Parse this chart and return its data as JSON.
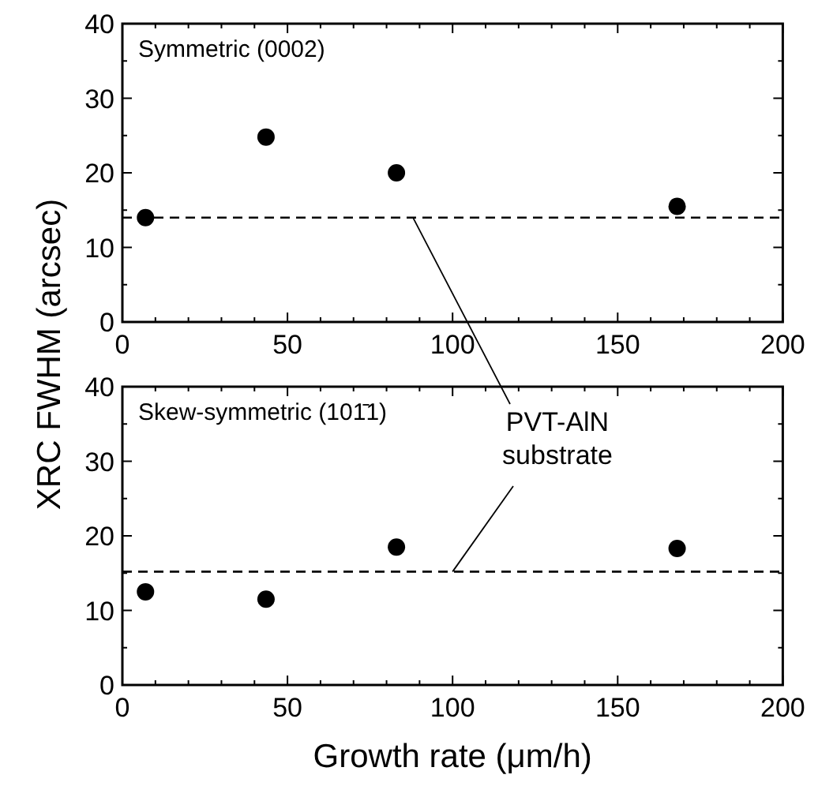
{
  "chart_data": [
    {
      "type": "scatter",
      "title": "Symmetric (0002)",
      "ylabel": "XRC FWHM (arcsec)",
      "x": [
        7,
        43.5,
        83,
        168
      ],
      "values": [
        14,
        24.8,
        20,
        15.5
      ],
      "color": "#000000",
      "marker": "circle",
      "xlim": [
        0,
        200
      ],
      "ylim": [
        0,
        40
      ],
      "xticks": [
        0,
        {
          "value": 10,
          "label": null
        },
        {
          "value": 20,
          "label": null
        },
        {
          "value": 30,
          "label": null
        },
        {
          "value": 40,
          "label": null
        },
        50,
        {
          "value": 60,
          "label": null
        },
        {
          "value": 70,
          "label": null
        },
        {
          "value": 80,
          "label": null
        },
        {
          "value": 90,
          "label": null
        },
        100,
        {
          "value": 110,
          "label": null
        },
        {
          "value": 120,
          "label": null
        },
        {
          "value": 130,
          "label": null
        },
        {
          "value": 140,
          "label": null
        },
        150,
        {
          "value": 160,
          "label": null
        },
        {
          "value": 170,
          "label": null
        },
        {
          "value": 180,
          "label": null
        },
        {
          "value": 190,
          "label": null
        },
        200
      ],
      "yticks": [
        0,
        {
          "value": 5,
          "label": null
        },
        10,
        {
          "value": 15,
          "label": null
        },
        20,
        {
          "value": 25,
          "label": null
        },
        30,
        {
          "value": 35,
          "label": null
        },
        40
      ],
      "ref_lines": [
        {
          "axis": "y",
          "value": 14,
          "line_style": "dashed",
          "color": "#000000"
        }
      ],
      "grid": false
    },
    {
      "type": "scatter",
      "title": "Skew-symmetric (101̄1)",
      "xlabel": "Growth rate (μm/h)",
      "annotations": [
        {
          "text": "PVT-AlN\nsubstrate",
          "x": 100,
          "y": 15.2
        }
      ],
      "x": [
        7,
        43.5,
        83,
        168
      ],
      "values": [
        12.5,
        11.5,
        18.5,
        18.3
      ],
      "color": "#000000",
      "marker": "circle",
      "xlim": [
        0,
        200
      ],
      "ylim": [
        0,
        40
      ],
      "xticks": [
        0,
        {
          "value": 10,
          "label": null
        },
        {
          "value": 20,
          "label": null
        },
        {
          "value": 30,
          "label": null
        },
        {
          "value": 40,
          "label": null
        },
        50,
        {
          "value": 60,
          "label": null
        },
        {
          "value": 70,
          "label": null
        },
        {
          "value": 80,
          "label": null
        },
        {
          "value": 90,
          "label": null
        },
        100,
        {
          "value": 110,
          "label": null
        },
        {
          "value": 120,
          "label": null
        },
        {
          "value": 130,
          "label": null
        },
        {
          "value": 140,
          "label": null
        },
        150,
        {
          "value": 160,
          "label": null
        },
        {
          "value": 170,
          "label": null
        },
        {
          "value": 180,
          "label": null
        },
        {
          "value": 190,
          "label": null
        },
        200
      ],
      "yticks": [
        0,
        {
          "value": 5,
          "label": null
        },
        10,
        {
          "value": 15,
          "label": null
        },
        20,
        {
          "value": 25,
          "label": null
        },
        30,
        {
          "value": 35,
          "label": null
        },
        40
      ],
      "ref_lines": [
        {
          "axis": "y",
          "value": 15.2,
          "line_style": "dashed",
          "color": "#000000"
        }
      ],
      "grid": false
    }
  ]
}
